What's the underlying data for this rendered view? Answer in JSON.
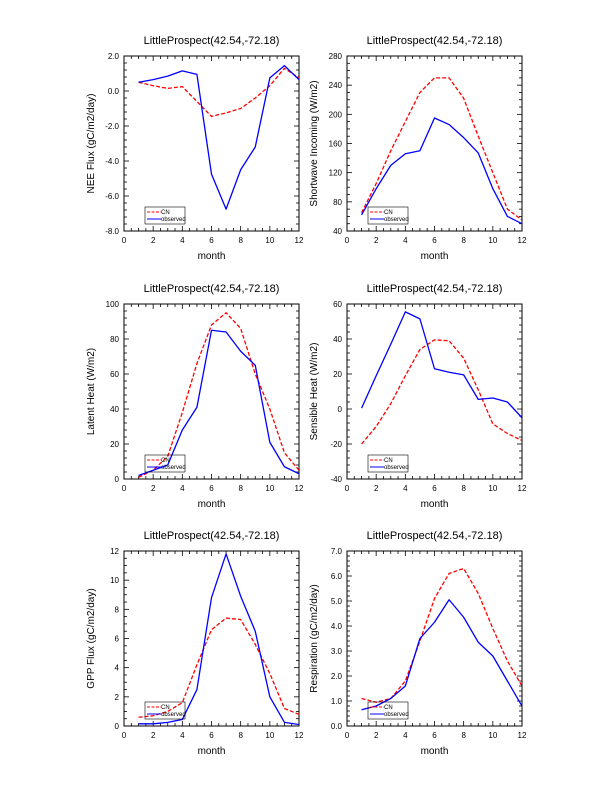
{
  "chart_data": [
    {
      "type": "line",
      "title": "LittleProspect(42.54,-72.18)",
      "xlabel": "month",
      "ylabel": "NEE Flux (gC/m2/day)",
      "xlim": [
        0,
        12
      ],
      "ylim": [
        -8.0,
        2.0
      ],
      "xticks": [
        0,
        2,
        4,
        6,
        8,
        10,
        12
      ],
      "yticks": [
        -8.0,
        -6.0,
        -4.0,
        -2.0,
        0.0,
        2.0
      ],
      "ytick_labels": [
        "-8.0",
        "-6.0",
        "-4.0",
        "-2.0",
        "0.0",
        "2.0"
      ],
      "y_minor_per_major": 4,
      "legend_position": "bottom-left",
      "x": [
        1,
        2,
        3,
        4,
        5,
        6,
        7,
        8,
        9,
        10,
        11,
        12
      ],
      "series": [
        {
          "name": "CN",
          "color": "#ff0000",
          "style": "dashed",
          "values": [
            0.5,
            0.3,
            0.15,
            0.25,
            -0.6,
            -1.45,
            -1.25,
            -1.0,
            -0.4,
            0.3,
            1.3,
            0.75
          ]
        },
        {
          "name": "observed",
          "color": "#0000ff",
          "style": "solid",
          "values": [
            0.5,
            0.65,
            0.85,
            1.15,
            0.95,
            -4.75,
            -6.75,
            -4.5,
            -3.2,
            0.75,
            1.45,
            0.65
          ]
        }
      ]
    },
    {
      "type": "line",
      "title": "LittleProspect(42.54,-72.18)",
      "xlabel": "month",
      "ylabel": "Shortwave Incoming (W/m2)",
      "xlim": [
        0,
        12
      ],
      "ylim": [
        40,
        280
      ],
      "xticks": [
        0,
        2,
        4,
        6,
        8,
        10,
        12
      ],
      "yticks": [
        40,
        80,
        120,
        160,
        200,
        240,
        280
      ],
      "ytick_labels": [
        "40",
        "80",
        "120",
        "160",
        "200",
        "240",
        "280"
      ],
      "y_minor_per_major": 3,
      "legend_position": "bottom-left",
      "x": [
        1,
        2,
        3,
        4,
        5,
        6,
        7,
        8,
        9,
        10,
        11,
        12
      ],
      "series": [
        {
          "name": "CN",
          "color": "#ff0000",
          "style": "dashed",
          "values": [
            65,
            105,
            150,
            190,
            230,
            250,
            250,
            222,
            170,
            120,
            70,
            55
          ]
        },
        {
          "name": "observed",
          "color": "#0000ff",
          "style": "solid",
          "values": [
            62,
            98,
            130,
            146,
            150,
            195,
            186,
            168,
            147,
            98,
            60,
            50
          ]
        }
      ]
    },
    {
      "type": "line",
      "title": "LittleProspect(42.54,-72.18)",
      "xlabel": "month",
      "ylabel": "Latent Heat (W/m2)",
      "xlim": [
        0,
        12
      ],
      "ylim": [
        0,
        100
      ],
      "xticks": [
        0,
        2,
        4,
        6,
        8,
        10,
        12
      ],
      "yticks": [
        0,
        20,
        40,
        60,
        80,
        100
      ],
      "ytick_labels": [
        "0",
        "20",
        "40",
        "60",
        "80",
        "100"
      ],
      "y_minor_per_major": 4,
      "legend_position": "bottom-left",
      "x": [
        1,
        2,
        3,
        4,
        5,
        6,
        7,
        8,
        9,
        10,
        11,
        12
      ],
      "series": [
        {
          "name": "CN",
          "color": "#ff0000",
          "style": "dashed",
          "values": [
            1,
            5,
            13,
            38,
            66,
            88,
            95,
            86,
            60,
            40,
            15,
            5
          ]
        },
        {
          "name": "observed",
          "color": "#0000ff",
          "style": "solid",
          "values": [
            2,
            5,
            8,
            28,
            41,
            85,
            84,
            73,
            65,
            21,
            7,
            3
          ]
        }
      ]
    },
    {
      "type": "line",
      "title": "LittleProspect(42.54,-72.18)",
      "xlabel": "month",
      "ylabel": "Sensible Heat (W/m2)",
      "xlim": [
        0,
        12
      ],
      "ylim": [
        -40,
        60
      ],
      "xticks": [
        0,
        2,
        4,
        6,
        8,
        10,
        12
      ],
      "yticks": [
        -40,
        -20,
        0,
        20,
        40,
        60
      ],
      "ytick_labels": [
        "-40",
        "-20",
        "0",
        "20",
        "40",
        "60"
      ],
      "y_minor_per_major": 4,
      "legend_position": "bottom-left",
      "x": [
        1,
        2,
        3,
        4,
        5,
        6,
        7,
        8,
        9,
        10,
        11,
        12
      ],
      "series": [
        {
          "name": "CN",
          "color": "#ff0000",
          "style": "dashed",
          "values": [
            -20,
            -10,
            3,
            19,
            34,
            39.5,
            39,
            29,
            11,
            -8.5,
            -14,
            -18
          ]
        },
        {
          "name": "observed",
          "color": "#0000ff",
          "style": "solid",
          "values": [
            0.5,
            19,
            37,
            55.5,
            51.5,
            23,
            21,
            19.5,
            5.5,
            6.3,
            4,
            -5
          ]
        }
      ]
    },
    {
      "type": "line",
      "title": "LittleProspect(42.54,-72.18)",
      "xlabel": "month",
      "ylabel": "GPP Flux (gC/m2/day)",
      "xlim": [
        0,
        12
      ],
      "ylim": [
        0,
        12
      ],
      "xticks": [
        0,
        2,
        4,
        6,
        8,
        10,
        12
      ],
      "yticks": [
        0,
        2,
        4,
        6,
        8,
        10,
        12
      ],
      "ytick_labels": [
        "0",
        "2",
        "4",
        "6",
        "8",
        "10",
        "12"
      ],
      "y_minor_per_major": 3,
      "legend_position": "bottom-left",
      "x": [
        1,
        2,
        3,
        4,
        5,
        6,
        7,
        8,
        9,
        10,
        11,
        12
      ],
      "series": [
        {
          "name": "CN",
          "color": "#ff0000",
          "style": "dashed",
          "values": [
            0.6,
            0.7,
            1.0,
            1.6,
            4.2,
            6.6,
            7.4,
            7.3,
            5.6,
            3.6,
            1.2,
            0.8
          ]
        },
        {
          "name": "observed",
          "color": "#0000ff",
          "style": "solid",
          "values": [
            0.15,
            0.15,
            0.25,
            0.45,
            2.5,
            8.8,
            11.8,
            8.9,
            6.5,
            2.0,
            0.25,
            0.1
          ]
        }
      ]
    },
    {
      "type": "line",
      "title": "LittleProspect(42.54,-72.18)",
      "xlabel": "month",
      "ylabel": "Respiration (gC/m2/day)",
      "xlim": [
        0,
        12
      ],
      "ylim": [
        0.0,
        7.0
      ],
      "xticks": [
        0,
        2,
        4,
        6,
        8,
        10,
        12
      ],
      "yticks": [
        0.0,
        1.0,
        2.0,
        3.0,
        4.0,
        5.0,
        6.0,
        7.0
      ],
      "ytick_labels": [
        "0.0",
        "1.0",
        "2.0",
        "3.0",
        "4.0",
        "5.0",
        "6.0",
        "7.0"
      ],
      "y_minor_per_major": 4,
      "legend_position": "bottom-left",
      "x": [
        1,
        2,
        3,
        4,
        5,
        6,
        7,
        8,
        9,
        10,
        11,
        12
      ],
      "series": [
        {
          "name": "CN",
          "color": "#ff0000",
          "style": "dashed",
          "values": [
            1.1,
            0.95,
            1.1,
            1.8,
            3.4,
            5.1,
            6.1,
            6.3,
            5.3,
            3.9,
            2.6,
            1.6
          ]
        },
        {
          "name": "observed",
          "color": "#0000ff",
          "style": "solid",
          "values": [
            0.65,
            0.8,
            1.1,
            1.6,
            3.5,
            4.15,
            5.05,
            4.35,
            3.35,
            2.8,
            1.8,
            0.8
          ]
        }
      ]
    }
  ]
}
